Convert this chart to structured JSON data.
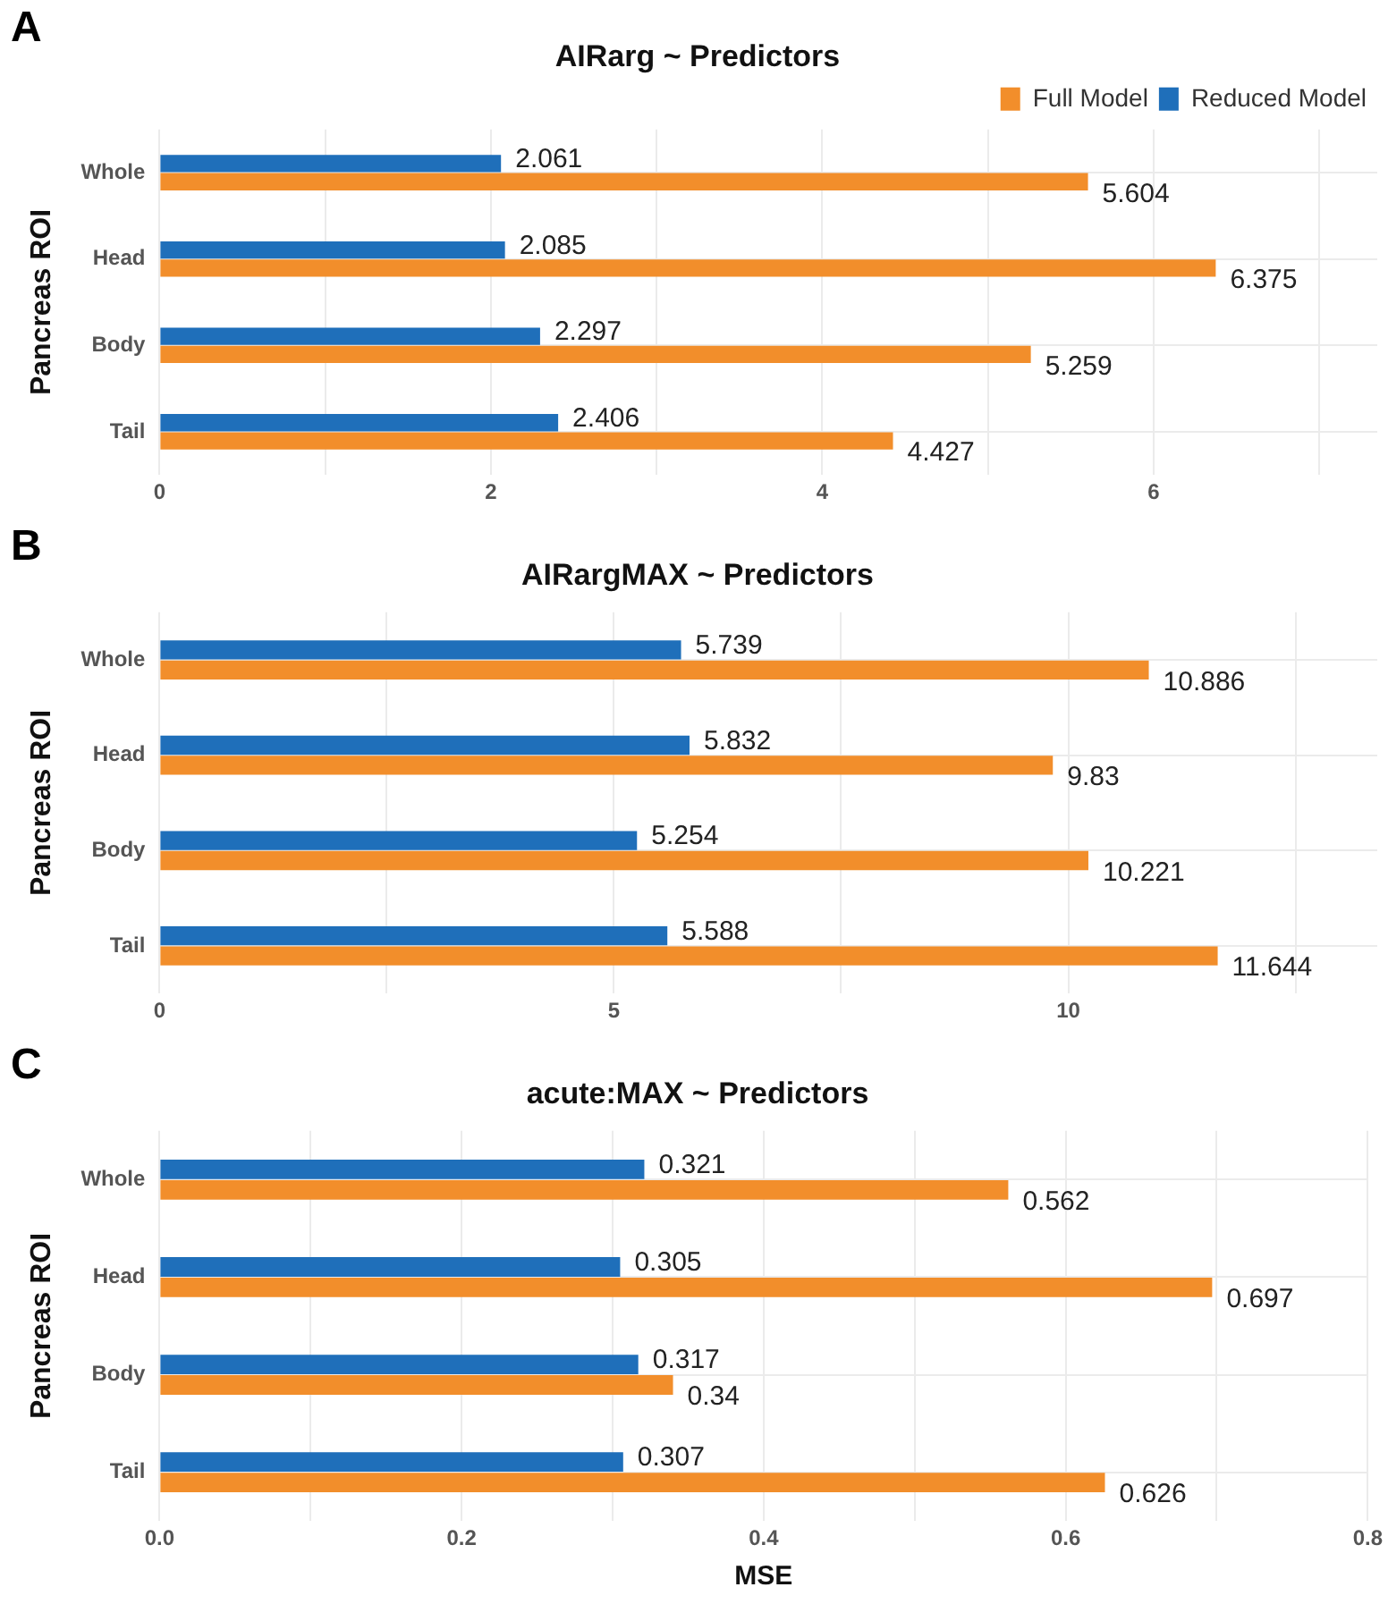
{
  "chart_data": [
    {
      "type": "bar",
      "orientation": "horizontal",
      "title": "AIRarg ~ Predictors",
      "ylabel": "Pancreas ROI",
      "annotations": [
        "A"
      ],
      "categories": [
        "Whole",
        "Head",
        "Body",
        "Tail"
      ],
      "series": [
        {
          "name": "Full Model",
          "color": "#f28e2b",
          "values": [
            5.604,
            6.375,
            5.259,
            4.427
          ]
        },
        {
          "name": "Reduced Model",
          "color": "#1f6fba",
          "values": [
            2.061,
            2.085,
            2.297,
            2.406
          ]
        }
      ],
      "xlim": [
        0,
        7.35
      ],
      "xticks": [
        0,
        {
          "value": 1,
          "label": null
        },
        2,
        {
          "value": 3,
          "label": null
        },
        4,
        {
          "value": 5,
          "label": null
        },
        6,
        {
          "value": 7,
          "label": null
        }
      ],
      "data_labels": true,
      "grid": true,
      "legend": "top right"
    },
    {
      "type": "bar",
      "orientation": "horizontal",
      "title": "AIRargMAX ~ Predictors",
      "ylabel": "Pancreas ROI",
      "annotations": [
        "B"
      ],
      "categories": [
        "Whole",
        "Head",
        "Body",
        "Tail"
      ],
      "series": [
        {
          "color": "#f28e2b",
          "values": [
            10.886,
            9.83,
            10.221,
            11.644
          ]
        },
        {
          "color": "#1f6fba",
          "values": [
            5.739,
            5.832,
            5.254,
            5.588
          ]
        }
      ],
      "xlim": [
        0,
        13.4
      ],
      "xticks": [
        0,
        {
          "value": 2.5,
          "label": null
        },
        5,
        {
          "value": 7.5,
          "label": null
        },
        10,
        {
          "value": 12.5,
          "label": null
        }
      ],
      "data_labels": true,
      "grid": true,
      "legend": false
    },
    {
      "type": "bar",
      "orientation": "horizontal",
      "title": "acute:MAX ~ Predictors",
      "xlabel": "MSE",
      "ylabel": "Pancreas ROI",
      "annotations": [
        "C"
      ],
      "categories": [
        "Whole",
        "Head",
        "Body",
        "Tail"
      ],
      "series": [
        {
          "color": "#f28e2b",
          "values": [
            0.562,
            0.697,
            0.34,
            0.626
          ]
        },
        {
          "color": "#1f6fba",
          "values": [
            0.321,
            0.305,
            0.317,
            0.307
          ]
        }
      ],
      "xlim": [
        0,
        0.8
      ],
      "xticks": [
        {
          "value": 0,
          "label": "0.0"
        },
        {
          "value": 0.1,
          "label": null
        },
        {
          "value": 0.2,
          "label": "0.2"
        },
        {
          "value": 0.3,
          "label": null
        },
        {
          "value": 0.4,
          "label": "0.4"
        },
        {
          "value": 0.5,
          "label": null
        },
        {
          "value": 0.6,
          "label": "0.6"
        },
        {
          "value": 0.7,
          "label": null
        },
        {
          "value": 0.8,
          "label": "0.8"
        }
      ],
      "data_labels": true,
      "grid": true,
      "legend": false
    }
  ]
}
